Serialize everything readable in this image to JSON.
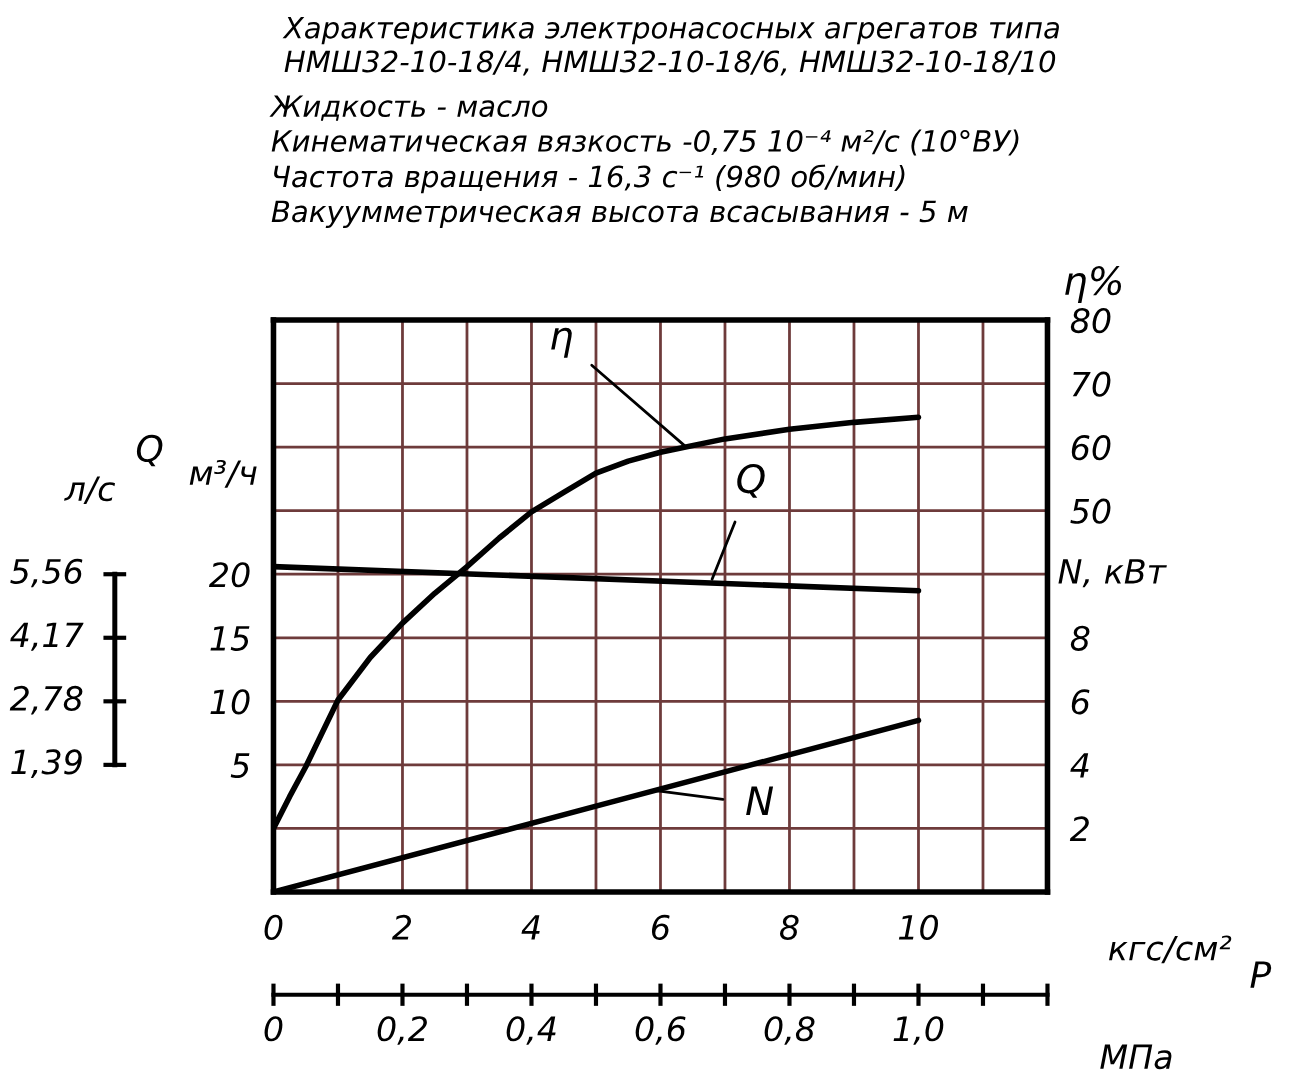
{
  "chart_data": {
    "type": "line",
    "title": "Характеристика электронасосных агрегатов типа\nНМШ32-10-18/4, НМШ32-10-18/6, НМШ32-10-18/10",
    "subtitle": "Жидкость - масло\nКинематическая вязкость -0,75 10⁻⁴ м²/с (10°ВУ)\nЧастота вращения - 16,3 с⁻¹ (980 об/мин)\nВакуумметрическая высота всасывания - 5 м",
    "xlabel": "кгс/см²",
    "x2label": "МПа",
    "ylabel": "м³/ч",
    "y2label": "η%",
    "y3label": "N, кВт",
    "xlim": [
      0,
      12
    ],
    "xticks": [
      0,
      {
        "value": 1,
        "label": null
      },
      2,
      {
        "value": 3,
        "label": null
      },
      4,
      {
        "value": 5,
        "label": null
      },
      6,
      {
        "value": 7,
        "label": null
      },
      8,
      {
        "value": 9,
        "label": null
      },
      10,
      {
        "value": 11,
        "label": null
      },
      {
        "value": 12,
        "label": null
      }
    ],
    "x2lim": [
      0,
      1.2
    ],
    "x2ticks": [
      0,
      {
        "value": 0.1,
        "label": null
      },
      {
        "value": 0.2,
        "label": "0,2"
      },
      {
        "value": 0.3,
        "label": null
      },
      {
        "value": 0.4,
        "label": "0,4"
      },
      {
        "value": 0.5,
        "label": null
      },
      {
        "value": 0.6,
        "label": "0,6"
      },
      {
        "value": 0.7,
        "label": null
      },
      {
        "value": 0.8,
        "label": "0,8"
      },
      {
        "value": 0.9,
        "label": null
      },
      {
        "value": 1.0,
        "label": "1,0"
      },
      {
        "value": 1.1,
        "label": null
      },
      {
        "value": 1.2,
        "label": null
      }
    ],
    "ylim": [
      -5,
      40
    ],
    "yticks": [
      {
        "value": -5,
        "label": null
      },
      {
        "value": 0,
        "label": null
      },
      5,
      10,
      15,
      20,
      {
        "value": 25,
        "label": null
      },
      {
        "value": 30,
        "label": null
      },
      {
        "value": 35,
        "label": null
      },
      {
        "value": 40,
        "label": null
      }
    ],
    "y2lim": [
      -10,
      80
    ],
    "y2ticks": [
      50,
      60,
      70,
      80
    ],
    "y3lim": [
      0,
      18
    ],
    "y3ticks": [
      2,
      4,
      6,
      8
    ],
    "grid": true,
    "marker": "none",
    "line_style": "solid",
    "series": [
      {
        "color": "#000000",
        "x": [
          0,
          10
        ],
        "values": [
          20.6,
          18.7
        ]
      },
      {
        "color": "#000000",
        "axis": "y2",
        "x": [
          0,
          0.25,
          0.5,
          1,
          1.5,
          2,
          2.5,
          3,
          3.5,
          4,
          4.5,
          5,
          5.5,
          6,
          7,
          8,
          9,
          10
        ],
        "values": [
          0,
          5.0,
          9.7,
          20.2,
          26.9,
          32.3,
          37.0,
          41.2,
          45.7,
          49.8,
          52.9,
          55.9,
          57.8,
          59.2,
          61.3,
          62.8,
          63.9,
          64.7
        ]
      },
      {
        "color": "#000000",
        "axis": "y3",
        "x": [
          0,
          5,
          10
        ],
        "values": [
          0,
          2.7,
          5.4
        ]
      }
    ],
    "annotations": [
      {
        "text": "η",
        "x": 6.4,
        "y": 30
      },
      {
        "text": "Q",
        "x": 6.8,
        "y": 19.6
      },
      {
        "text": "N",
        "x": 5.9,
        "y": 3.0
      },
      "Q",
      "P",
      "л/с",
      "5,56",
      "4,17",
      "2,78",
      "1,39"
    ]
  }
}
